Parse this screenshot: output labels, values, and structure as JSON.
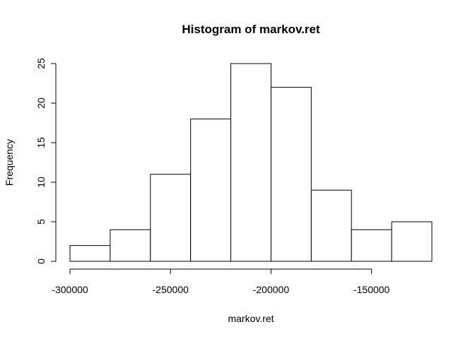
{
  "chart_data": {
    "type": "bar",
    "title": "Histogram of markov.ret",
    "xlabel": "markov.ret",
    "ylabel": "Frequency",
    "bins": [
      {
        "start": -300000,
        "end": -280000,
        "count": 2
      },
      {
        "start": -280000,
        "end": -260000,
        "count": 4
      },
      {
        "start": -260000,
        "end": -240000,
        "count": 11
      },
      {
        "start": -240000,
        "end": -220000,
        "count": 18
      },
      {
        "start": -220000,
        "end": -200000,
        "count": 25
      },
      {
        "start": -200000,
        "end": -180000,
        "count": 22
      },
      {
        "start": -180000,
        "end": -160000,
        "count": 9
      },
      {
        "start": -160000,
        "end": -140000,
        "count": 4
      },
      {
        "start": -140000,
        "end": -120000,
        "count": 5
      }
    ],
    "xlim": [
      -300000,
      -120000
    ],
    "ylim": [
      0,
      25
    ],
    "x_ticks": [
      -300000,
      -250000,
      -200000,
      -150000
    ],
    "x_tick_labels": [
      "-300000",
      "-250000",
      "-200000",
      "-150000"
    ],
    "y_ticks": [
      0,
      5,
      10,
      15,
      20,
      25
    ],
    "y_tick_labels": [
      "0",
      "5",
      "10",
      "15",
      "20",
      "25"
    ],
    "grid": false,
    "legend": "none"
  }
}
